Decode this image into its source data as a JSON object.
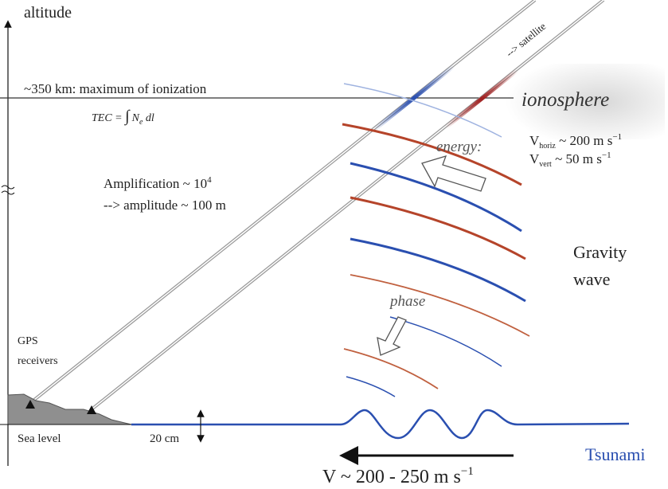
{
  "axis": {
    "label": "altitude"
  },
  "ionization": {
    "label": "~350 km: maximum of ionization",
    "tec_lhs": "TEC = ",
    "tec_integral": "∫",
    "tec_rhs": "N",
    "tec_sub": "e",
    "tec_tail": " dl"
  },
  "ionosphere": {
    "label": "ionosphere"
  },
  "satellite": {
    "label": "--> satellite"
  },
  "amplification": {
    "line1": "Amplification ~ 10",
    "line1_sup": "4",
    "line2": "--> amplitude ~ 100 m"
  },
  "energy": {
    "label": "energy:",
    "v_horiz": {
      "v": "V",
      "sub": "horiz",
      "value": " ~ 200 m s",
      "sup": "−1"
    },
    "v_vert": {
      "v": "V",
      "sub": "vert",
      "value": " ~ 50 m s",
      "sup": "−1"
    }
  },
  "phase": {
    "label": "phase"
  },
  "gravity_wave": {
    "line1": "Gravity",
    "line2": "wave"
  },
  "gps": {
    "line1": "GPS",
    "line2": "receivers"
  },
  "sea_level": {
    "label": "Sea level"
  },
  "amplitude_marker": {
    "label": "20 cm"
  },
  "tsunami": {
    "label": "Tsunami"
  },
  "speed": {
    "label": "V ~ 200 - 250 m s",
    "sup": "−1"
  },
  "colors": {
    "wave_blue": "#2a4fb0",
    "wave_red": "#b5442a",
    "tsunami": "#2a4fb0",
    "land": "#8f8f8f"
  }
}
